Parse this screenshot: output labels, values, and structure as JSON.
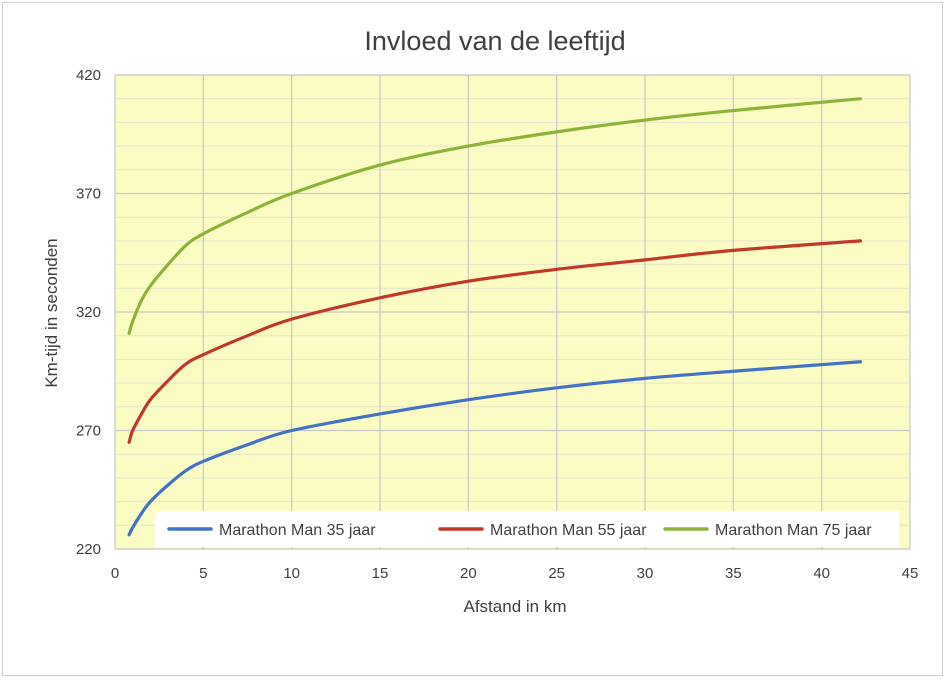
{
  "chart_data": {
    "type": "line",
    "title": "Invloed van de leeftijd",
    "xlabel": "Afstand in km",
    "ylabel": "Km-tijd in seconden",
    "xlim": [
      0,
      45
    ],
    "ylim": [
      220,
      420
    ],
    "xticks": [
      0,
      5,
      10,
      15,
      20,
      25,
      30,
      35,
      40,
      45
    ],
    "yticks": [
      220,
      270,
      320,
      370,
      420
    ],
    "grid": true,
    "legend": "bottom-right",
    "plot_background": "#FBFBC4",
    "x": [
      0.8,
      1,
      1.5,
      2,
      3,
      4,
      5,
      7.5,
      10,
      15,
      20,
      25,
      30,
      35,
      42.195
    ],
    "series": [
      {
        "name": "Marathon Man 35 jaar",
        "color": "#4472C4",
        "values": [
          226,
          229,
          235,
          240,
          247,
          253,
          257,
          264,
          270,
          277,
          283,
          288,
          292,
          295,
          299
        ]
      },
      {
        "name": "Marathon Man 55 jaar",
        "color": "#C0392B",
        "values": [
          265,
          270,
          277,
          283,
          291,
          298,
          302,
          310,
          317,
          326,
          333,
          338,
          342,
          346,
          350
        ]
      },
      {
        "name": "Marathon Man 75 jaar",
        "color": "#8DB33A",
        "values": [
          311,
          316,
          325,
          331,
          340,
          348,
          353,
          362,
          370,
          382,
          390,
          396,
          401,
          405,
          410
        ]
      }
    ]
  }
}
